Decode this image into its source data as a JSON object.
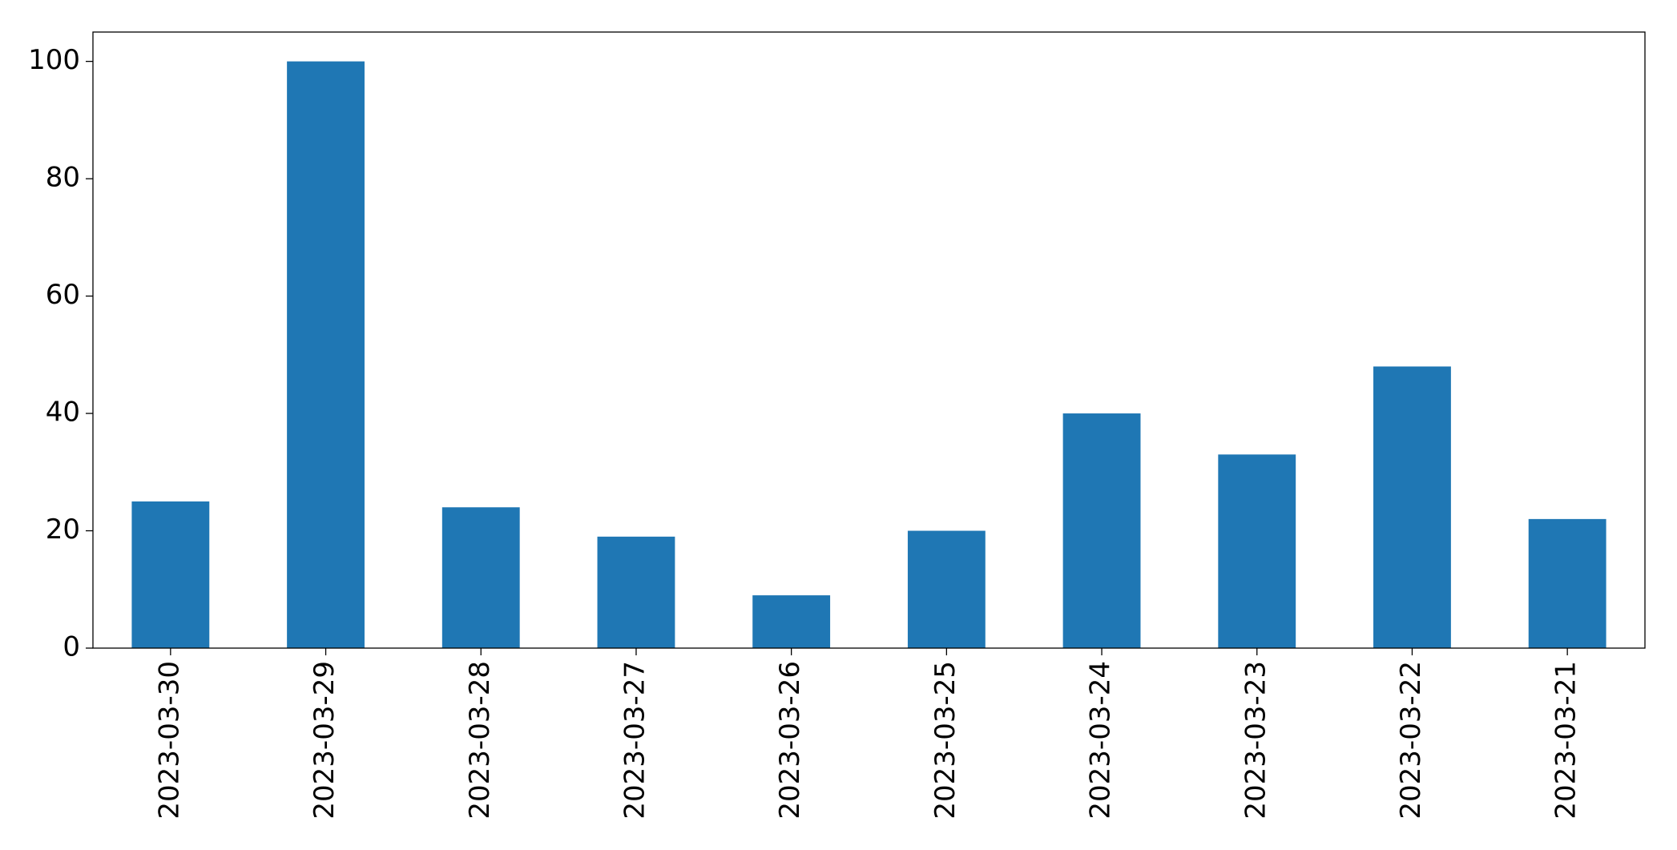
{
  "chart_data": {
    "type": "bar",
    "categories": [
      "2023-03-30",
      "2023-03-29",
      "2023-03-28",
      "2023-03-27",
      "2023-03-26",
      "2023-03-25",
      "2023-03-24",
      "2023-03-23",
      "2023-03-22",
      "2023-03-21"
    ],
    "values": [
      25,
      100,
      24,
      19,
      9,
      20,
      40,
      33,
      48,
      22
    ],
    "color": "#1f77b4",
    "ylim": [
      0,
      105
    ],
    "yticks": [
      0,
      20,
      40,
      60,
      80,
      100
    ],
    "grid": false
  }
}
